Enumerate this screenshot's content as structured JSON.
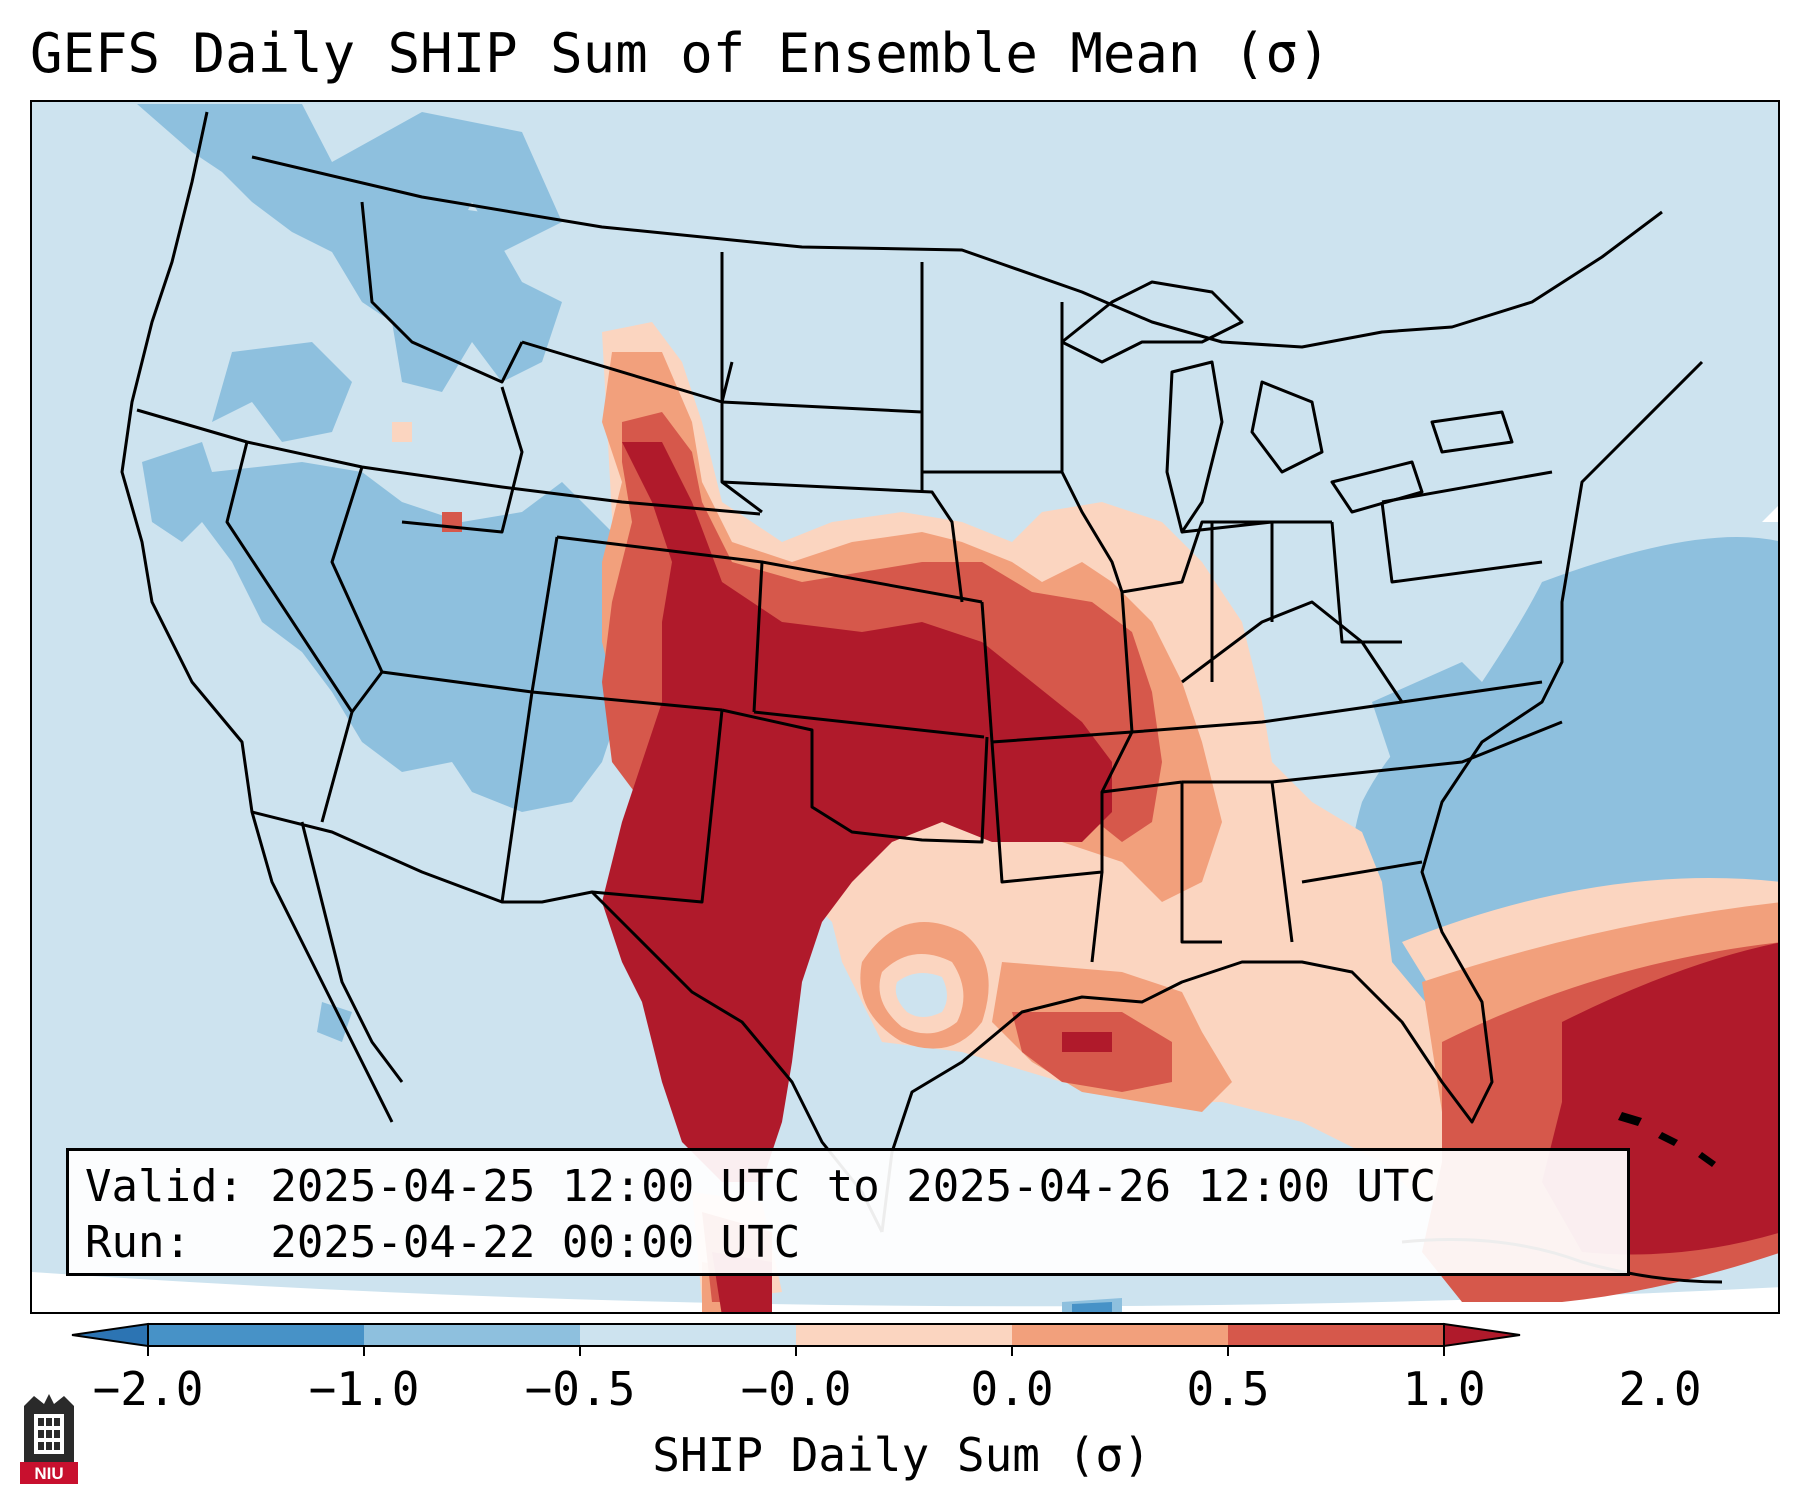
{
  "title": "GEFS Daily SHIP Sum of Ensemble Mean (σ)",
  "info": {
    "valid_line": "Valid: 2025-04-25 12:00 UTC to 2025-04-26 12:00 UTC",
    "run_line": "Run:   2025-04-22 00:00 UTC"
  },
  "colorbar": {
    "label": "SHIP Daily Sum (σ)",
    "ticks": [
      "−2.0",
      "−1.0",
      "−0.5",
      "−0.0",
      "0.0",
      "0.5",
      "1.0",
      "2.0"
    ],
    "levels": [
      {
        "range": "< -2.0",
        "color": "#2c74b3"
      },
      {
        "range": "-2.0 to -1.0",
        "color": "#4792c7"
      },
      {
        "range": "-1.0 to -0.5",
        "color": "#8ec0de"
      },
      {
        "range": "-0.5 to -0.0",
        "color": "#cde3ef"
      },
      {
        "range": "0.0 to 0.5",
        "color": "#fbd5c0"
      },
      {
        "range": "0.5 to 1.0",
        "color": "#f2a07c"
      },
      {
        "range": "1.0 to 2.0",
        "color": "#d6584b"
      },
      {
        "range": "> 2.0",
        "color": "#b01a2b"
      }
    ],
    "extend": "both"
  },
  "colors": {
    "background_field": "#cde3ef",
    "outside_domain": "#ffffff",
    "boundaries": "#000000"
  },
  "map": {
    "projection": "Lambert conformal",
    "region": "Continental United States",
    "features": [
      "state boundaries",
      "coastlines",
      "country borders",
      "lakes"
    ]
  },
  "logo": {
    "text": "NIU",
    "icon": "university-tower-icon",
    "color": "#c8102e"
  }
}
